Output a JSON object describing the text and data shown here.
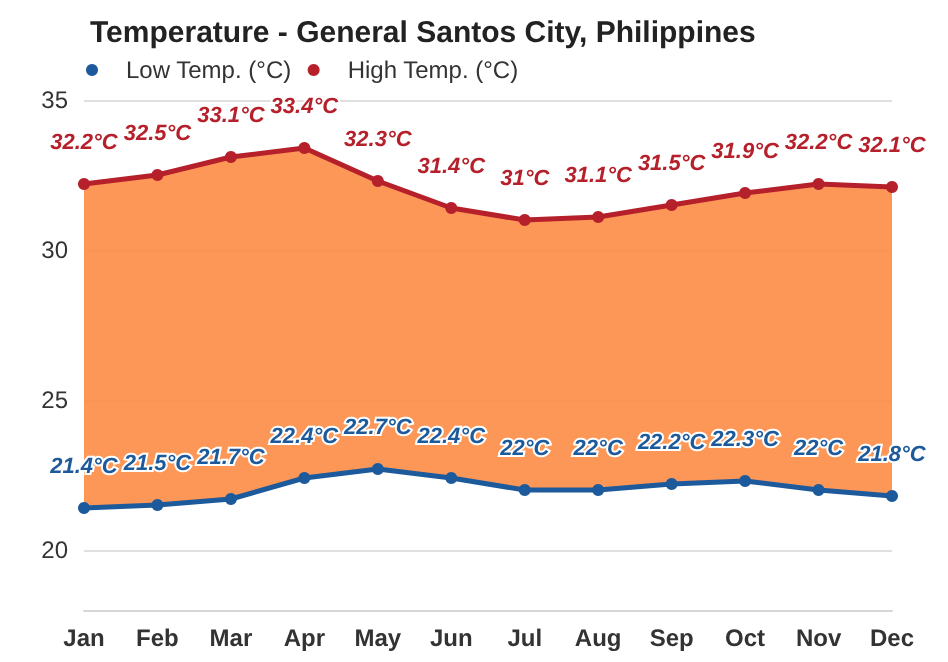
{
  "chart_data": {
    "type": "line",
    "title": "Temperature - General Santos City, Philippines",
    "categories": [
      "Jan",
      "Feb",
      "Mar",
      "Apr",
      "May",
      "Jun",
      "Jul",
      "Aug",
      "Sep",
      "Oct",
      "Nov",
      "Dec"
    ],
    "series": [
      {
        "name": "Low Temp. (°C)",
        "color": "#1d5a9c",
        "values": [
          21.4,
          21.5,
          21.7,
          22.4,
          22.7,
          22.4,
          22,
          22,
          22.2,
          22.3,
          22,
          21.8
        ],
        "value_labels": [
          "21.4°C",
          "21.5°C",
          "21.7°C",
          "22.4°C",
          "22.7°C",
          "22.4°C",
          "22°C",
          "22°C",
          "22.2°C",
          "22.3°C",
          "22°C",
          "21.8°C"
        ]
      },
      {
        "name": "High Temp. (°C)",
        "color": "#b5202a",
        "type": "area",
        "values": [
          32.2,
          32.5,
          33.1,
          33.4,
          32.3,
          31.4,
          31,
          31.1,
          31.5,
          31.9,
          32.2,
          32.1
        ],
        "value_labels": [
          "32.2°C",
          "32.5°C",
          "33.1°C",
          "33.4°C",
          "32.3°C",
          "31.4°C",
          "31°C",
          "31.1°C",
          "31.5°C",
          "31.9°C",
          "32.2°C",
          "32.1°C"
        ]
      }
    ],
    "ylim": [
      18,
      35
    ],
    "yticks": [
      20,
      25,
      30,
      35
    ],
    "grid": "y",
    "legend": "top left",
    "marker": "circle",
    "line_style": "solid"
  }
}
